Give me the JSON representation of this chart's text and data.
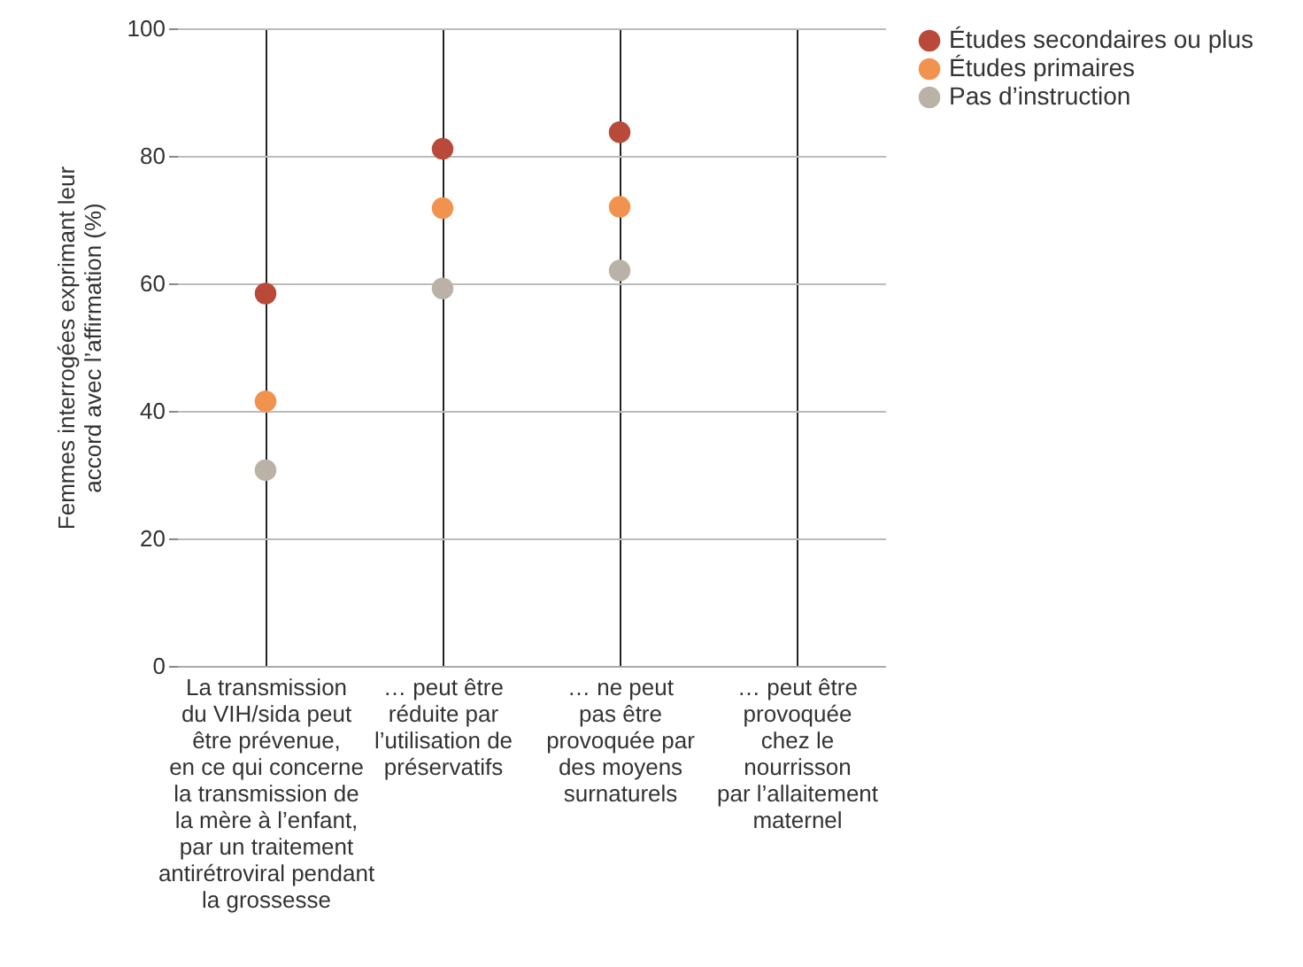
{
  "chart_data": {
    "type": "scatter",
    "categories": [
      "La transmission\ndu VIH/sida peut\nêtre prévenue,\nen ce qui concerne\nla transmission de\nla mère à l’enfant,\npar un traitement\nantirétroviral pendant\nla grossesse",
      "… peut être\nréduite par\nl’utilisation de\npréservatifs",
      "… ne peut\npas être\nprovoquée par\ndes moyens\nsurnaturels",
      "… peut être\nprovoquée\nchez le\nnourrisson\npar l’allaitement\nmaternel"
    ],
    "ylabel": "Femmes interrogées exprimant leur accord avec l’affirmation (%)",
    "ylim": [
      0,
      100
    ],
    "yticks": [
      0,
      20,
      40,
      60,
      80,
      100
    ],
    "grid": true,
    "legend": "right",
    "marker": "circle",
    "series": [
      {
        "name": "Études secondaires ou plus",
        "color": "#b94a3a",
        "values": [
          58.4,
          81.1,
          83.7,
          null
        ]
      },
      {
        "name": "Études primaires",
        "color": "#f2924f",
        "values": [
          41.5,
          71.8,
          72.0,
          null
        ]
      },
      {
        "name": "Pas d’instruction",
        "color": "#bab2a6",
        "values": [
          30.7,
          59.2,
          62.0,
          null
        ]
      }
    ]
  }
}
